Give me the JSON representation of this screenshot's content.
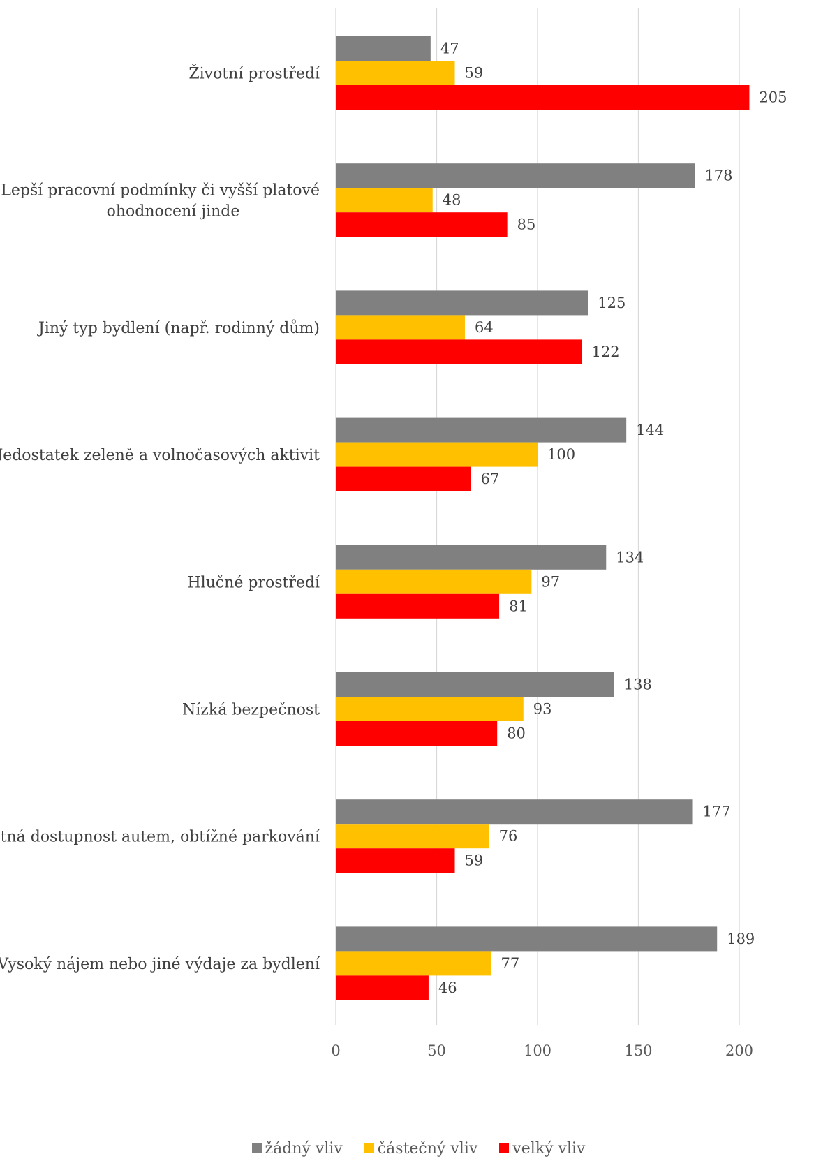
{
  "chart_data": {
    "type": "bar",
    "orientation": "horizontal",
    "categories": [
      [
        "Životní prostředí"
      ],
      [
        "Lepší pracovní podmínky či vyšší platové",
        "ohodnocení jinde"
      ],
      [
        "Jiný typ bydlení (např. rodinný dům)"
      ],
      [
        "Nedostatek zeleně a volnočasových aktivit"
      ],
      [
        "Hlučné prostředí"
      ],
      [
        "Nízká bezpečnost"
      ],
      [
        "Špatná dostupnost autem, obtížné parkování"
      ],
      [
        "Vysoký nájem nebo jiné výdaje za bydlení"
      ]
    ],
    "series": [
      {
        "name": "žádný vliv",
        "color": "#808080",
        "values": [
          47,
          178,
          125,
          144,
          134,
          138,
          177,
          189
        ]
      },
      {
        "name": "částečný vliv",
        "color": "#FFC000",
        "values": [
          59,
          48,
          64,
          100,
          97,
          93,
          76,
          77
        ]
      },
      {
        "name": "velký vliv",
        "color": "#FF0000",
        "values": [
          205,
          85,
          122,
          67,
          81,
          80,
          59,
          46
        ]
      }
    ],
    "xlim": [
      0,
      210
    ],
    "xticks": [
      0,
      50,
      100,
      150,
      200
    ],
    "grid": true,
    "legend": "bottom",
    "gridColor": "#D9D9D9"
  }
}
